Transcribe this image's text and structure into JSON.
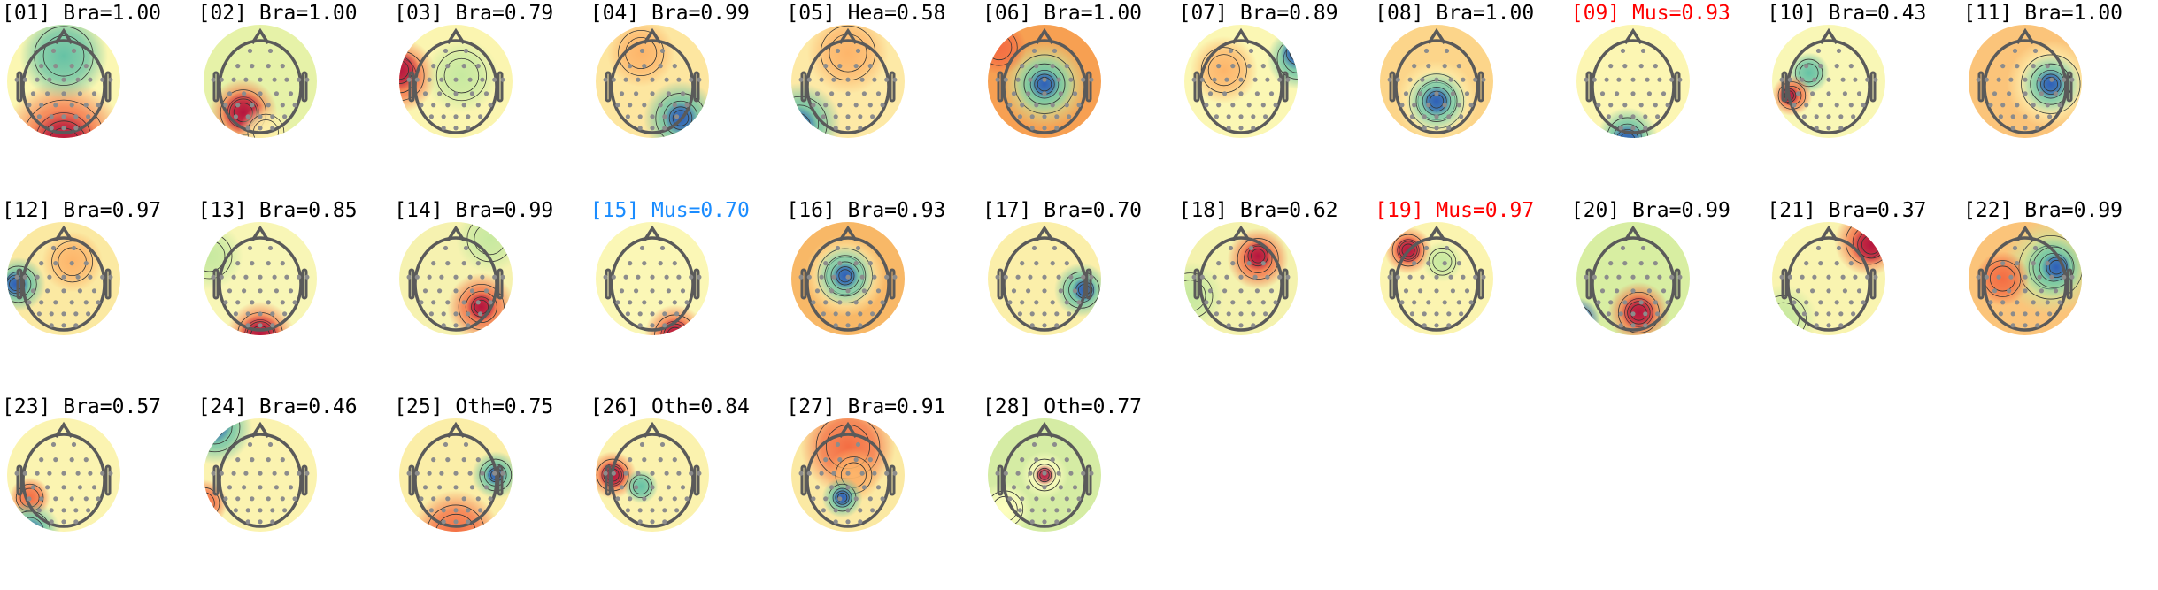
{
  "colors": {
    "default_label": "#000000",
    "muscle_flag": "#ff0000",
    "muscle_alt": "#1a8cff",
    "electrode": "#8c8c8c",
    "head_outline": "#5a5a5a"
  },
  "colormap": "spectral",
  "chart_data": {
    "type": "heatmap",
    "title": "",
    "components": [
      {
        "label": "[01] Bra=1.00",
        "color": "default"
      },
      {
        "label": "[02] Bra=1.00",
        "color": "default"
      },
      {
        "label": "[03] Bra=0.79",
        "color": "default"
      },
      {
        "label": "[04] Bra=0.99",
        "color": "default"
      },
      {
        "label": "[05] Hea=0.58",
        "color": "default"
      },
      {
        "label": "[06] Bra=1.00",
        "color": "default"
      },
      {
        "label": "[07] Bra=0.89",
        "color": "default"
      },
      {
        "label": "[08] Bra=1.00",
        "color": "default"
      },
      {
        "label": "[09] Mus=0.93",
        "color": "muscle_flag"
      },
      {
        "label": "[10] Bra=0.43",
        "color": "default"
      },
      {
        "label": "[11] Bra=1.00",
        "color": "default"
      },
      {
        "label": "[12] Bra=0.97",
        "color": "default"
      },
      {
        "label": "[13] Bra=0.85",
        "color": "default"
      },
      {
        "label": "[14] Bra=0.99",
        "color": "default"
      },
      {
        "label": "[15] Mus=0.70",
        "color": "muscle_alt"
      },
      {
        "label": "[16] Bra=0.93",
        "color": "default"
      },
      {
        "label": "[17] Bra=0.70",
        "color": "default"
      },
      {
        "label": "[18] Bra=0.62",
        "color": "default"
      },
      {
        "label": "[19] Mus=0.97",
        "color": "muscle_flag"
      },
      {
        "label": "[20] Bra=0.99",
        "color": "default"
      },
      {
        "label": "[21] Bra=0.37",
        "color": "default"
      },
      {
        "label": "[22] Bra=0.99",
        "color": "default"
      },
      {
        "label": "[23] Bra=0.57",
        "color": "default"
      },
      {
        "label": "[24] Bra=0.46",
        "color": "default"
      },
      {
        "label": "[25] Oth=0.75",
        "color": "default"
      },
      {
        "label": "[26] Oth=0.84",
        "color": "default"
      },
      {
        "label": "[27] Bra=0.91",
        "color": "default"
      },
      {
        "label": "[28] Oth=0.77",
        "color": "default"
      }
    ]
  }
}
